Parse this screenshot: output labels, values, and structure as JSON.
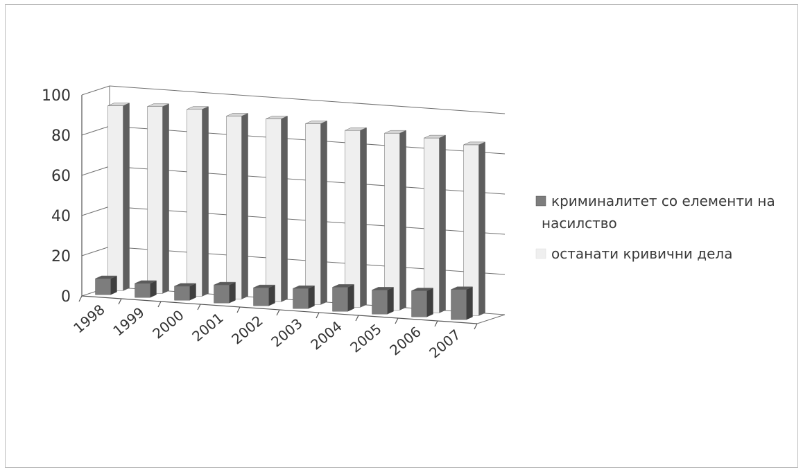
{
  "chart_data": {
    "type": "bar",
    "subtype": "3d-clustered-column",
    "title": "",
    "xlabel": "",
    "ylabel": "",
    "categories": [
      "1998",
      "1999",
      "2000",
      "2001",
      "2002",
      "2003",
      "2004",
      "2005",
      "2006",
      "2007"
    ],
    "series": [
      {
        "name": "криминалитет со елементи на насилство",
        "values": [
          8,
          7,
          7,
          9,
          9,
          10,
          12,
          12,
          13,
          15
        ]
      },
      {
        "name": "останати кривични дела",
        "values": [
          92,
          93,
          93,
          91,
          91,
          90,
          88,
          88,
          87,
          85
        ]
      }
    ],
    "ylim": [
      0,
      100
    ],
    "yticks": [
      0,
      20,
      40,
      60,
      80,
      100
    ],
    "grid": true,
    "legend_position": "right",
    "colors": {
      "series_0": "#7a7a7a",
      "series_1": "#eeeeee"
    }
  }
}
